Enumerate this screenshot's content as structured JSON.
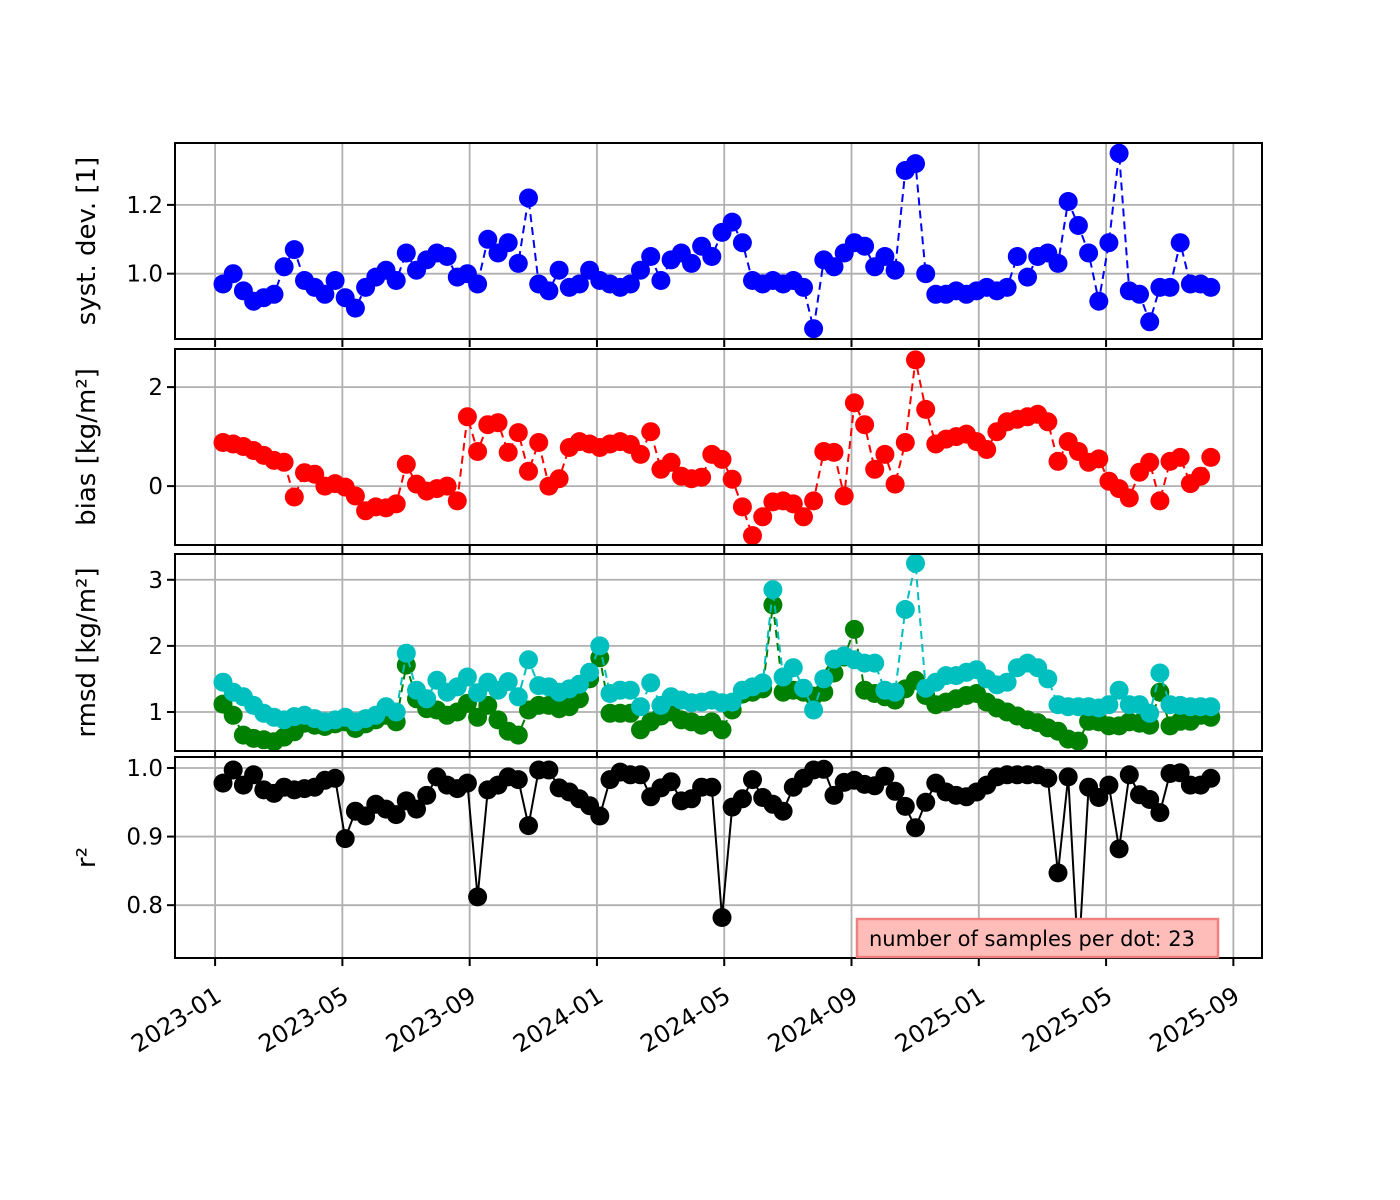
{
  "figure": {
    "background": "#ffffff",
    "annotation": {
      "text": "number of samples per dot: 23",
      "facecolor": "#ffbdba",
      "edgecolor": "#f08080",
      "textcolor": "#000000"
    }
  },
  "chart_data": {
    "type": "line",
    "grid": true,
    "grid_color": "#b0b0b0",
    "frame_color": "#000000",
    "marker_diameter_px": 19,
    "x_axis": {
      "unit": "months since 2023-01",
      "start": 0.25,
      "step": 0.32,
      "count": 98,
      "range": [
        -1.26,
        32.9
      ],
      "tick_positions": [
        0,
        4,
        8,
        12,
        16,
        20,
        24,
        28,
        32
      ],
      "tick_labels": [
        "2023-01",
        "2023-05",
        "2023-09",
        "2024-01",
        "2024-05",
        "2024-09",
        "2025-01",
        "2025-05",
        "2025-09"
      ],
      "label_rotation_deg": -32
    },
    "panels": [
      {
        "name": "syst-dev",
        "ylabel": "syst. dev. [1]",
        "ylim": [
          0.81,
          1.38
        ],
        "yticks": [
          1.0,
          1.2
        ],
        "ytick_labels": [
          "1.0",
          "1.2"
        ],
        "series": [
          {
            "name": "syst_dev",
            "color": "#0000ff",
            "linestyle": "dashed",
            "values": [
              0.97,
              1.0,
              0.95,
              0.92,
              0.93,
              0.94,
              1.02,
              1.07,
              0.98,
              0.96,
              0.94,
              0.98,
              0.93,
              0.9,
              0.96,
              0.99,
              1.01,
              0.98,
              1.06,
              1.01,
              1.04,
              1.06,
              1.05,
              0.99,
              1.0,
              0.97,
              1.1,
              1.06,
              1.09,
              1.03,
              1.22,
              0.97,
              0.95,
              1.01,
              0.96,
              0.97,
              1.01,
              0.98,
              0.97,
              0.96,
              0.97,
              1.01,
              1.05,
              0.98,
              1.04,
              1.06,
              1.03,
              1.08,
              1.05,
              1.12,
              1.15,
              1.09,
              0.98,
              0.97,
              0.98,
              0.97,
              0.98,
              0.96,
              0.84,
              1.04,
              1.02,
              1.06,
              1.09,
              1.08,
              1.02,
              1.05,
              1.01,
              1.3,
              1.32,
              1.0,
              0.94,
              0.94,
              0.95,
              0.94,
              0.95,
              0.96,
              0.95,
              0.96,
              1.05,
              0.99,
              1.05,
              1.06,
              1.03,
              1.21,
              1.14,
              1.06,
              0.92,
              1.09,
              1.35,
              0.95,
              0.94,
              0.86,
              0.96,
              0.96,
              1.09,
              0.97,
              0.97,
              0.96
            ]
          }
        ]
      },
      {
        "name": "bias",
        "ylabel": "bias [kg/m²]",
        "ylim": [
          -1.19,
          2.77
        ],
        "yticks": [
          0,
          2
        ],
        "ytick_labels": [
          "0",
          "2"
        ],
        "series": [
          {
            "name": "bias",
            "color": "#ff0000",
            "linestyle": "dashed",
            "values": [
              0.88,
              0.85,
              0.8,
              0.72,
              0.62,
              0.52,
              0.48,
              -0.22,
              0.27,
              0.24,
              0.0,
              0.05,
              -0.02,
              -0.2,
              -0.5,
              -0.42,
              -0.44,
              -0.36,
              0.44,
              0.04,
              -0.1,
              -0.05,
              0.0,
              -0.3,
              1.4,
              0.7,
              1.24,
              1.28,
              0.68,
              1.08,
              0.3,
              0.88,
              0.0,
              0.15,
              0.78,
              0.9,
              0.85,
              0.78,
              0.85,
              0.9,
              0.84,
              0.64,
              1.1,
              0.34,
              0.48,
              0.2,
              0.15,
              0.18,
              0.64,
              0.54,
              0.14,
              -0.42,
              -1.0,
              -0.62,
              -0.32,
              -0.3,
              -0.36,
              -0.62,
              -0.3,
              0.7,
              0.68,
              -0.2,
              1.68,
              1.24,
              0.34,
              0.64,
              0.04,
              0.88,
              2.55,
              1.55,
              0.85,
              0.95,
              1.0,
              1.05,
              0.9,
              0.74,
              1.1,
              1.3,
              1.35,
              1.4,
              1.45,
              1.3,
              0.5,
              0.9,
              0.7,
              0.48,
              0.55,
              0.1,
              -0.05,
              -0.24,
              0.28,
              0.48,
              -0.3,
              0.5,
              0.58,
              0.05,
              0.2,
              0.58
            ]
          }
        ]
      },
      {
        "name": "rmsd",
        "ylabel": "rmsd [kg/m²]",
        "ylim": [
          0.41,
          3.39
        ],
        "yticks": [
          1,
          2,
          3
        ],
        "ytick_labels": [
          "1",
          "2",
          "3"
        ],
        "series": [
          {
            "name": "rmsd_green",
            "color": "#008000",
            "linestyle": "dashed",
            "values": [
              1.12,
              0.95,
              0.65,
              0.6,
              0.58,
              0.55,
              0.62,
              0.7,
              0.83,
              0.8,
              0.78,
              0.82,
              0.85,
              0.75,
              0.82,
              0.88,
              0.95,
              0.85,
              1.71,
              1.2,
              1.05,
              1.03,
              0.95,
              1.0,
              1.13,
              0.92,
              1.1,
              0.88,
              0.71,
              0.65,
              1.03,
              1.1,
              1.1,
              1.05,
              1.08,
              1.2,
              1.5,
              1.82,
              0.98,
              0.98,
              0.98,
              0.73,
              0.85,
              0.94,
              1.0,
              0.88,
              0.85,
              0.8,
              0.85,
              0.73,
              1.03,
              1.27,
              1.3,
              1.35,
              2.62,
              1.3,
              1.33,
              1.3,
              1.24,
              1.3,
              1.59,
              1.83,
              2.25,
              1.33,
              1.28,
              1.23,
              1.18,
              1.35,
              1.48,
              1.25,
              1.11,
              1.15,
              1.2,
              1.25,
              1.28,
              1.15,
              1.06,
              1.0,
              0.94,
              0.88,
              0.84,
              0.76,
              0.71,
              0.59,
              0.56,
              0.86,
              0.85,
              0.79,
              0.79,
              0.85,
              0.83,
              0.8,
              1.3,
              0.79,
              0.86,
              0.86,
              0.95,
              0.92
            ]
          },
          {
            "name": "rmsd_cyan",
            "color": "#00bfbf",
            "linestyle": "dashed",
            "values": [
              1.45,
              1.3,
              1.23,
              1.1,
              0.98,
              0.92,
              0.88,
              0.93,
              0.95,
              0.9,
              0.85,
              0.88,
              0.92,
              0.85,
              0.9,
              0.95,
              1.08,
              1.0,
              1.89,
              1.33,
              1.2,
              1.48,
              1.3,
              1.38,
              1.53,
              1.29,
              1.45,
              1.33,
              1.46,
              1.23,
              1.79,
              1.4,
              1.38,
              1.3,
              1.35,
              1.42,
              1.6,
              2.0,
              1.28,
              1.33,
              1.33,
              1.08,
              1.44,
              1.1,
              1.23,
              1.18,
              1.14,
              1.15,
              1.18,
              1.14,
              1.15,
              1.33,
              1.38,
              1.44,
              2.85,
              1.53,
              1.67,
              1.36,
              1.03,
              1.5,
              1.8,
              1.85,
              1.79,
              1.74,
              1.74,
              1.33,
              1.3,
              2.55,
              3.25,
              1.36,
              1.45,
              1.55,
              1.55,
              1.6,
              1.64,
              1.5,
              1.41,
              1.45,
              1.67,
              1.74,
              1.67,
              1.5,
              1.11,
              1.08,
              1.08,
              1.08,
              1.06,
              1.11,
              1.33,
              1.11,
              1.11,
              0.98,
              1.59,
              1.11,
              1.1,
              1.08,
              1.08,
              1.08
            ]
          }
        ]
      },
      {
        "name": "r2",
        "ylabel": "r²",
        "ylim": [
          0.723,
          1.016
        ],
        "yticks": [
          0.8,
          0.9,
          1.0
        ],
        "ytick_labels": [
          "0.8",
          "0.9",
          "1.0"
        ],
        "series": [
          {
            "name": "r_squared",
            "color": "#000000",
            "linestyle": "solid",
            "values": [
              0.978,
              0.997,
              0.975,
              0.99,
              0.968,
              0.963,
              0.972,
              0.968,
              0.97,
              0.972,
              0.982,
              0.985,
              0.897,
              0.937,
              0.93,
              0.947,
              0.94,
              0.932,
              0.952,
              0.94,
              0.96,
              0.987,
              0.975,
              0.97,
              0.978,
              0.812,
              0.968,
              0.975,
              0.987,
              0.983,
              0.916,
              0.997,
              0.997,
              0.971,
              0.965,
              0.955,
              0.945,
              0.93,
              0.983,
              0.994,
              0.99,
              0.99,
              0.958,
              0.971,
              0.98,
              0.952,
              0.955,
              0.972,
              0.972,
              0.782,
              0.943,
              0.955,
              0.983,
              0.957,
              0.947,
              0.937,
              0.972,
              0.985,
              0.997,
              0.998,
              0.96,
              0.979,
              0.982,
              0.976,
              0.974,
              0.988,
              0.966,
              0.944,
              0.913,
              0.95,
              0.978,
              0.965,
              0.96,
              0.958,
              0.965,
              0.975,
              0.987,
              0.99,
              0.99,
              0.99,
              0.99,
              0.985,
              0.847,
              0.987,
              0.72,
              0.972,
              0.957,
              0.975,
              0.882,
              0.99,
              0.961,
              0.954,
              0.935,
              0.992,
              0.993,
              0.975,
              0.975,
              0.985
            ]
          }
        ]
      }
    ]
  }
}
